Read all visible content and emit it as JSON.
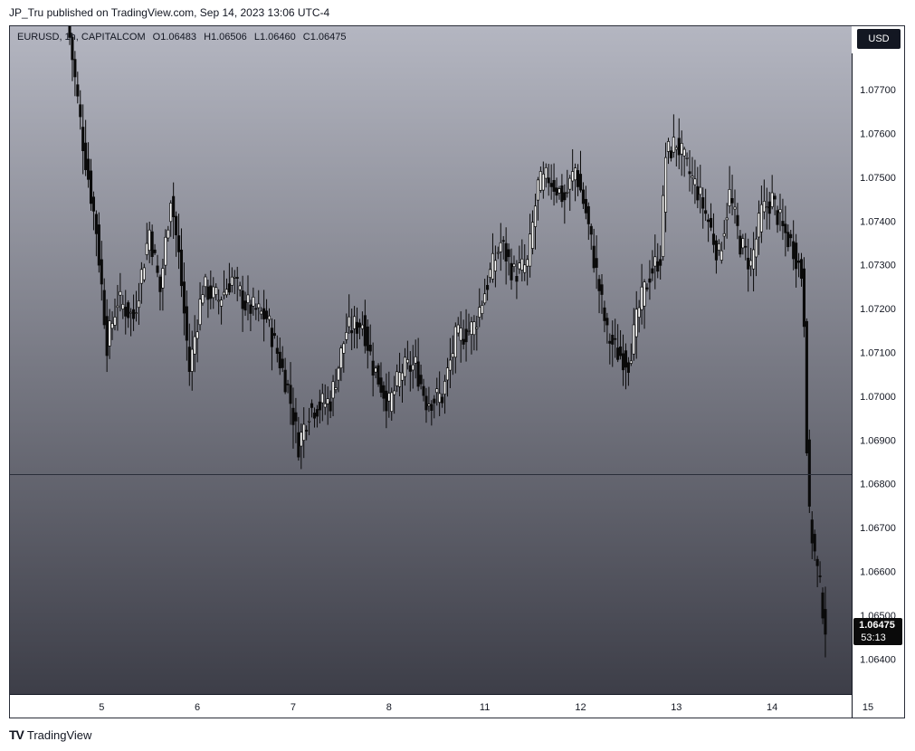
{
  "header": {
    "published_line": "JP_Tru published on TradingView.com, Sep 14, 2023 13:06 UTC-4"
  },
  "legend": {
    "symbol": "EURUSD, 1h, CAPITALCOM",
    "open": "O1.06483",
    "high": "H1.06506",
    "low": "L1.06460",
    "close": "C1.06475"
  },
  "currency": "USD",
  "footer": {
    "brand": "TradingView",
    "logo": "TV"
  },
  "price_label": {
    "price": "1.06475",
    "countdown": "53:13"
  },
  "colors": {
    "gradient_top": "#b4b6c1",
    "gradient_bottom": "#3d3e48",
    "candle": "#0a0a0a",
    "candle_hollow": "#ffffff",
    "horizontal_line": "#2a2e39"
  },
  "chart_data": {
    "type": "candlestick",
    "title": "",
    "xlabel": "",
    "ylabel": "",
    "timeframe": "1h",
    "ylim": [
      1.0632,
      1.07845
    ],
    "y_ticks": [
      "1.07700",
      "1.07600",
      "1.07500",
      "1.07400",
      "1.07300",
      "1.07200",
      "1.07100",
      "1.07000",
      "1.06900",
      "1.06800",
      "1.06700",
      "1.06600",
      "1.06500",
      "1.06400"
    ],
    "x_ticks": [
      {
        "label": "5",
        "index": 12
      },
      {
        "label": "6",
        "index": 48
      },
      {
        "label": "7",
        "index": 84
      },
      {
        "label": "8",
        "index": 120
      },
      {
        "label": "11",
        "index": 156
      },
      {
        "label": "12",
        "index": 192
      },
      {
        "label": "13",
        "index": 228
      },
      {
        "label": "14",
        "index": 264
      },
      {
        "label": "15",
        "index": 300
      }
    ],
    "horizontal_line": 1.06823,
    "last_price": 1.06475,
    "anchors": [
      [
        0,
        1.0782
      ],
      [
        5,
        1.0758
      ],
      [
        10,
        1.0738
      ],
      [
        14,
        1.0712
      ],
      [
        18,
        1.0722
      ],
      [
        24,
        1.0718
      ],
      [
        30,
        1.0738
      ],
      [
        34,
        1.0724
      ],
      [
        38,
        1.0746
      ],
      [
        41,
        1.0732
      ],
      [
        45,
        1.0706
      ],
      [
        50,
        1.0725
      ],
      [
        56,
        1.0722
      ],
      [
        61,
        1.0727
      ],
      [
        66,
        1.0721
      ],
      [
        74,
        1.0718
      ],
      [
        82,
        1.0702
      ],
      [
        86,
        1.0689
      ],
      [
        90,
        1.0697
      ],
      [
        98,
        1.0699
      ],
      [
        104,
        1.0715
      ],
      [
        110,
        1.0717
      ],
      [
        114,
        1.0707
      ],
      [
        120,
        1.0698
      ],
      [
        125,
        1.0706
      ],
      [
        130,
        1.0707
      ],
      [
        134,
        1.0699
      ],
      [
        140,
        1.07
      ],
      [
        145,
        1.0713
      ],
      [
        152,
        1.0716
      ],
      [
        158,
        1.0728
      ],
      [
        162,
        1.0735
      ],
      [
        167,
        1.0728
      ],
      [
        172,
        1.073
      ],
      [
        176,
        1.0748
      ],
      [
        180,
        1.075
      ],
      [
        186,
        1.0745
      ],
      [
        190,
        1.0752
      ],
      [
        194,
        1.0742
      ],
      [
        198,
        1.0728
      ],
      [
        202,
        1.0714
      ],
      [
        206,
        1.071
      ],
      [
        210,
        1.0708
      ],
      [
        214,
        1.072
      ],
      [
        218,
        1.0728
      ],
      [
        222,
        1.0732
      ],
      [
        224,
        1.0755
      ],
      [
        228,
        1.0758
      ],
      [
        232,
        1.0752
      ],
      [
        236,
        1.0747
      ],
      [
        240,
        1.074
      ],
      [
        244,
        1.0732
      ],
      [
        248,
        1.0746
      ],
      [
        252,
        1.0735
      ],
      [
        256,
        1.073
      ],
      [
        260,
        1.0742
      ],
      [
        264,
        1.0745
      ],
      [
        268,
        1.0738
      ],
      [
        272,
        1.0734
      ],
      [
        275,
        1.0728
      ],
      [
        276,
        1.0718
      ],
      [
        277,
        1.069
      ],
      [
        278,
        1.0672
      ],
      [
        280,
        1.0664
      ],
      [
        282,
        1.0656
      ],
      [
        283,
        1.0652
      ],
      [
        284,
        1.06475
      ]
    ]
  }
}
